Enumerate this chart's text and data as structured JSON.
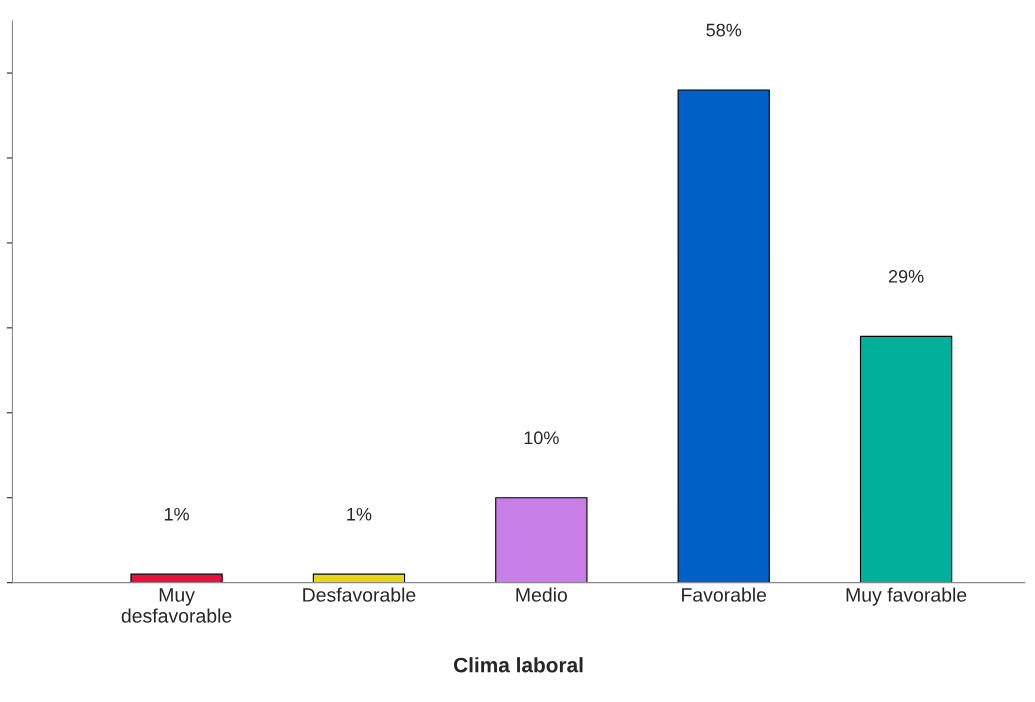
{
  "chart_data": {
    "type": "bar",
    "xlabel": "Clima laboral",
    "categories": [
      "Muy\ndesfavorable",
      "Desfavorable",
      "Medio",
      "Favorable",
      "Muy favorable"
    ],
    "values": [
      1,
      1,
      10,
      58,
      29
    ],
    "value_labels": [
      "1%",
      "1%",
      "10%",
      "58%",
      "29%"
    ],
    "colors": [
      "#e8103c",
      "#e6d619",
      "#c77ee6",
      "#0060c8",
      "#00b09a"
    ],
    "tick_labels": "x",
    "grid": false,
    "legend": false
  }
}
